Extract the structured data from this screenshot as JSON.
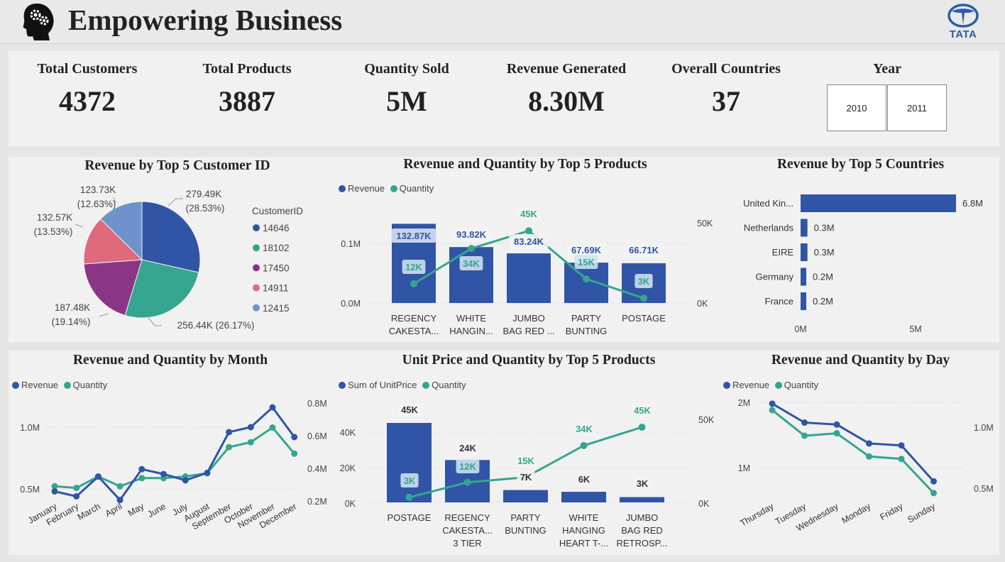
{
  "header": {
    "title": "Empowering Business",
    "logo_text": "TATA"
  },
  "kpis": [
    {
      "label": "Total Customers",
      "value": "4372"
    },
    {
      "label": "Total Products",
      "value": "3887"
    },
    {
      "label": "Quantity Sold",
      "value": "5M"
    },
    {
      "label": "Revenue Generated",
      "value": "8.30M"
    },
    {
      "label": "Overall Countries",
      "value": "37"
    }
  ],
  "year_filter": {
    "label": "Year",
    "options": [
      "2010",
      "2011"
    ]
  },
  "colors": {
    "revenue": "#3055a6",
    "quantity": "#35a58f"
  },
  "charts": {
    "customers": {
      "title": "Revenue by Top 5 Customer ID",
      "legend_title": "CustomerID"
    },
    "products": {
      "title": "Revenue and Quantity by Top 5 Products",
      "legend": [
        "Revenue",
        "Quantity"
      ]
    },
    "countries": {
      "title": "Revenue by Top 5 Countries"
    },
    "month": {
      "title": "Revenue and Quantity by Month",
      "legend": [
        "Revenue",
        "Quantity"
      ]
    },
    "unitprice": {
      "title": "Unit Price and Quantity by Top 5 Products",
      "legend": [
        "Sum of UnitPrice",
        "Quantity"
      ]
    },
    "day": {
      "title": "Revenue and Quantity by Day",
      "legend": [
        "Revenue",
        "Quantity"
      ]
    }
  },
  "chart_data": [
    {
      "type": "pie",
      "title": "Revenue by Top 5 Customer ID",
      "legend_title": "CustomerID",
      "categories": [
        "14646",
        "18102",
        "17450",
        "14911",
        "12415"
      ],
      "values": [
        279.49,
        256.44,
        187.48,
        132.57,
        123.73
      ],
      "labels": [
        [
          "279.49K",
          "(28.53%)"
        ],
        [
          "256.44K (26.17%)"
        ],
        [
          "187.48K",
          "(19.14%)"
        ],
        [
          "132.57K",
          "(13.53%)"
        ],
        [
          "123.73K",
          "(12.63%)"
        ]
      ],
      "colors": [
        "#3055a6",
        "#35a58f",
        "#8b3587",
        "#df6a7c",
        "#6e93cc"
      ]
    },
    {
      "type": "bar",
      "title": "Revenue and Quantity by Top 5 Products",
      "categories": [
        [
          "REGENCY",
          "CAKESTA..."
        ],
        [
          "WHITE",
          "HANGIN..."
        ],
        [
          "JUMBO",
          "BAG RED ..."
        ],
        [
          "PARTY",
          "BUNTING"
        ],
        [
          "POSTAGE"
        ]
      ],
      "series": [
        {
          "name": "Revenue",
          "type": "bar",
          "values": [
            132.87,
            93.82,
            83.24,
            67.69,
            66.71
          ],
          "labels": [
            "132.87K",
            "93.82K",
            "83.24K",
            "67.69K",
            "66.71K"
          ]
        },
        {
          "name": "Quantity",
          "type": "line",
          "values": [
            12,
            34,
            45,
            15,
            3
          ],
          "labels": [
            "12K",
            "34K",
            "45K",
            "15K",
            "3K"
          ]
        }
      ],
      "y_left_ticks": [
        "0.0M",
        "0.1M"
      ],
      "y_right_ticks": [
        "0K",
        "50K"
      ]
    },
    {
      "type": "bar",
      "orientation": "horizontal",
      "title": "Revenue by Top 5 Countries",
      "categories": [
        "United Kin...",
        "Netherlands",
        "EIRE",
        "Germany",
        "France"
      ],
      "values": [
        6.8,
        0.3,
        0.3,
        0.2,
        0.2
      ],
      "labels": [
        "6.8M",
        "0.3M",
        "0.3M",
        "0.2M",
        "0.2M"
      ],
      "x_ticks": [
        "0M",
        "5M"
      ]
    },
    {
      "type": "line",
      "title": "Revenue and Quantity by Month",
      "x": [
        "January",
        "February",
        "March",
        "April",
        "May",
        "June",
        "July",
        "August",
        "September",
        "October",
        "November",
        "December"
      ],
      "series": [
        {
          "name": "Revenue",
          "values": [
            0.48,
            0.44,
            0.6,
            0.41,
            0.66,
            0.62,
            0.57,
            0.63,
            0.96,
            1.0,
            1.16,
            0.92
          ]
        },
        {
          "name": "Quantity",
          "values": [
            0.29,
            0.28,
            0.35,
            0.29,
            0.34,
            0.34,
            0.35,
            0.37,
            0.53,
            0.56,
            0.65,
            0.49
          ]
        }
      ],
      "y_left_ticks": [
        "0.5M",
        "1.0M"
      ],
      "y_right_ticks": [
        "0.2M",
        "0.4M",
        "0.6M",
        "0.8M"
      ]
    },
    {
      "type": "bar",
      "title": "Unit Price and Quantity by Top 5 Products",
      "categories": [
        [
          "POSTAGE"
        ],
        [
          "REGENCY",
          "CAKESTA...",
          "3 TIER"
        ],
        [
          "PARTY",
          "BUNTING"
        ],
        [
          "WHITE",
          "HANGING",
          "HEART T-..."
        ],
        [
          "JUMBO",
          "BAG RED",
          "RETROSP..."
        ]
      ],
      "series": [
        {
          "name": "Sum of UnitPrice",
          "type": "bar",
          "values": [
            45,
            24,
            7,
            6,
            3
          ],
          "labels": [
            "45K",
            "24K",
            "7K",
            "6K",
            "3K"
          ]
        },
        {
          "name": "Quantity",
          "type": "line",
          "values": [
            3,
            12,
            15,
            34,
            45
          ],
          "labels": [
            "3K",
            "12K",
            "15K",
            "34K",
            "45K"
          ]
        }
      ],
      "y_left_ticks": [
        "0K",
        "20K",
        "40K"
      ],
      "y_right_ticks": [
        "0K",
        "50K"
      ]
    },
    {
      "type": "line",
      "title": "Revenue and Quantity by Day",
      "x": [
        "Thursday",
        "Tuesday",
        "Wednesday",
        "Monday",
        "Friday",
        "Sunday"
      ],
      "series": [
        {
          "name": "Revenue",
          "values": [
            1.98,
            1.69,
            1.66,
            1.37,
            1.34,
            0.79
          ]
        },
        {
          "name": "Quantity",
          "values": [
            1.14,
            0.93,
            0.95,
            0.76,
            0.74,
            0.46
          ]
        }
      ],
      "y_left_ticks": [
        "1M",
        "2M"
      ],
      "y_right_ticks": [
        "0.5M",
        "1.0M"
      ]
    }
  ]
}
